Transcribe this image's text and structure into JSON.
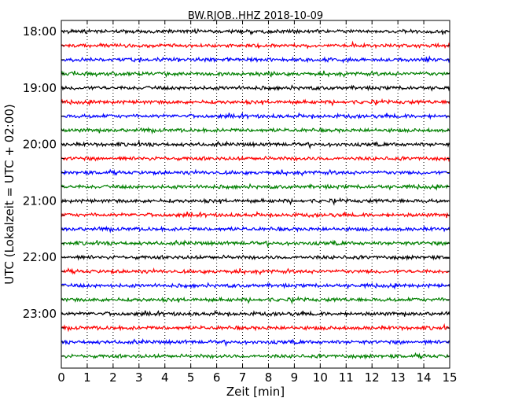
{
  "chart_data": {
    "type": "line",
    "title": "BW.RJOB..HHZ 2018-10-09",
    "xlabel": "Zeit  [min]",
    "ylabel": "UTC (Lokalzeit = UTC + 02:00)",
    "xlim": [
      0,
      15
    ],
    "x_ticks": [
      0,
      1,
      2,
      3,
      4,
      5,
      6,
      7,
      8,
      9,
      10,
      11,
      12,
      13,
      14,
      15
    ],
    "y_tick_labels": [
      "18:00",
      "19:00",
      "20:00",
      "21:00",
      "22:00",
      "23:00"
    ],
    "grid": "vertical dotted",
    "trace_interval_minutes": 15,
    "traces": [
      {
        "start": "18:00",
        "color": "#000000"
      },
      {
        "start": "18:15",
        "color": "#ff0000"
      },
      {
        "start": "18:30",
        "color": "#0000ff"
      },
      {
        "start": "18:45",
        "color": "#008000"
      },
      {
        "start": "19:00",
        "color": "#000000"
      },
      {
        "start": "19:15",
        "color": "#ff0000"
      },
      {
        "start": "19:30",
        "color": "#0000ff"
      },
      {
        "start": "19:45",
        "color": "#008000"
      },
      {
        "start": "20:00",
        "color": "#000000"
      },
      {
        "start": "20:15",
        "color": "#ff0000"
      },
      {
        "start": "20:30",
        "color": "#0000ff"
      },
      {
        "start": "20:45",
        "color": "#008000"
      },
      {
        "start": "21:00",
        "color": "#000000"
      },
      {
        "start": "21:15",
        "color": "#ff0000"
      },
      {
        "start": "21:30",
        "color": "#0000ff"
      },
      {
        "start": "21:45",
        "color": "#008000"
      },
      {
        "start": "22:00",
        "color": "#000000"
      },
      {
        "start": "22:15",
        "color": "#ff0000"
      },
      {
        "start": "22:30",
        "color": "#0000ff"
      },
      {
        "start": "22:45",
        "color": "#008000"
      },
      {
        "start": "23:00",
        "color": "#000000"
      },
      {
        "start": "23:15",
        "color": "#ff0000"
      },
      {
        "start": "23:30",
        "color": "#0000ff"
      },
      {
        "start": "23:45",
        "color": "#008000"
      }
    ]
  }
}
